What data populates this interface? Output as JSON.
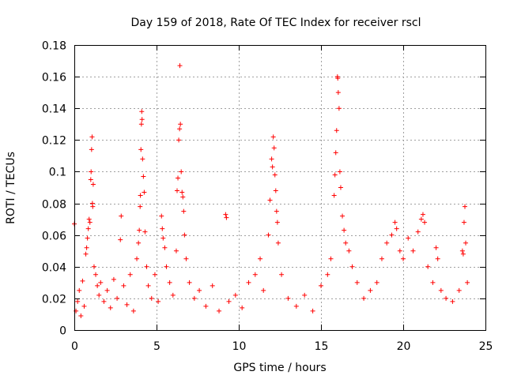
{
  "chart_data": {
    "type": "scatter",
    "title": "Day 159 of 2018, Rate Of TEC Index for receiver rscl",
    "xlabel": "GPS time / hours",
    "ylabel": "ROTI / TECUs",
    "xlim": [
      0,
      25
    ],
    "ylim": [
      0,
      0.18
    ],
    "xticks": [
      0,
      5,
      10,
      15,
      20,
      25
    ],
    "xtick_labels": [
      "0",
      "5",
      "10",
      "15",
      "20",
      "25"
    ],
    "yticks": [
      0,
      0.02,
      0.04,
      0.06,
      0.08,
      0.1,
      0.12,
      0.14,
      0.16,
      0.18
    ],
    "ytick_labels": [
      "0",
      "0.02",
      "0.04",
      "0.06",
      "0.08",
      "0.1",
      "0.12",
      "0.14",
      "0.16",
      "0.18"
    ],
    "grid": true,
    "marker": "+",
    "series": [
      {
        "name": "ROTI",
        "color": "#ff0000",
        "points": [
          [
            0.0,
            0.067
          ],
          [
            0.1,
            0.012
          ],
          [
            0.2,
            0.018
          ],
          [
            0.3,
            0.025
          ],
          [
            0.4,
            0.009
          ],
          [
            0.5,
            0.031
          ],
          [
            0.6,
            0.015
          ],
          [
            0.7,
            0.048
          ],
          [
            0.75,
            0.052
          ],
          [
            0.8,
            0.058
          ],
          [
            0.85,
            0.064
          ],
          [
            0.9,
            0.07
          ],
          [
            0.95,
            0.068
          ],
          [
            1.0,
            0.095
          ],
          [
            1.02,
            0.1
          ],
          [
            1.05,
            0.114
          ],
          [
            1.08,
            0.122
          ],
          [
            1.1,
            0.08
          ],
          [
            1.12,
            0.078
          ],
          [
            1.15,
            0.092
          ],
          [
            1.2,
            0.04
          ],
          [
            1.3,
            0.035
          ],
          [
            1.4,
            0.028
          ],
          [
            1.5,
            0.022
          ],
          [
            1.6,
            0.03
          ],
          [
            1.8,
            0.018
          ],
          [
            2.0,
            0.025
          ],
          [
            2.2,
            0.014
          ],
          [
            2.4,
            0.032
          ],
          [
            2.6,
            0.02
          ],
          [
            2.8,
            0.057
          ],
          [
            2.85,
            0.072
          ],
          [
            3.0,
            0.028
          ],
          [
            3.2,
            0.016
          ],
          [
            3.4,
            0.035
          ],
          [
            3.6,
            0.012
          ],
          [
            3.8,
            0.045
          ],
          [
            3.9,
            0.055
          ],
          [
            3.95,
            0.063
          ],
          [
            4.0,
            0.078
          ],
          [
            4.02,
            0.085
          ],
          [
            4.05,
            0.114
          ],
          [
            4.08,
            0.13
          ],
          [
            4.1,
            0.138
          ],
          [
            4.12,
            0.133
          ],
          [
            4.15,
            0.108
          ],
          [
            4.2,
            0.097
          ],
          [
            4.25,
            0.087
          ],
          [
            4.3,
            0.062
          ],
          [
            4.4,
            0.04
          ],
          [
            4.5,
            0.028
          ],
          [
            4.7,
            0.02
          ],
          [
            4.9,
            0.035
          ],
          [
            5.1,
            0.018
          ],
          [
            5.3,
            0.072
          ],
          [
            5.35,
            0.064
          ],
          [
            5.4,
            0.058
          ],
          [
            5.5,
            0.052
          ],
          [
            5.6,
            0.04
          ],
          [
            5.8,
            0.03
          ],
          [
            6.0,
            0.022
          ],
          [
            6.2,
            0.05
          ],
          [
            6.25,
            0.088
          ],
          [
            6.3,
            0.096
          ],
          [
            6.35,
            0.12
          ],
          [
            6.4,
            0.127
          ],
          [
            6.42,
            0.167
          ],
          [
            6.45,
            0.13
          ],
          [
            6.5,
            0.1
          ],
          [
            6.55,
            0.087
          ],
          [
            6.6,
            0.084
          ],
          [
            6.65,
            0.075
          ],
          [
            6.7,
            0.06
          ],
          [
            6.8,
            0.045
          ],
          [
            7.0,
            0.03
          ],
          [
            7.3,
            0.02
          ],
          [
            7.6,
            0.025
          ],
          [
            8.0,
            0.015
          ],
          [
            8.4,
            0.028
          ],
          [
            8.8,
            0.012
          ],
          [
            9.2,
            0.073
          ],
          [
            9.25,
            0.071
          ],
          [
            9.4,
            0.018
          ],
          [
            9.8,
            0.022
          ],
          [
            10.2,
            0.014
          ],
          [
            10.6,
            0.03
          ],
          [
            11.0,
            0.035
          ],
          [
            11.3,
            0.045
          ],
          [
            11.5,
            0.025
          ],
          [
            11.8,
            0.06
          ],
          [
            11.9,
            0.082
          ],
          [
            12.0,
            0.108
          ],
          [
            12.05,
            0.103
          ],
          [
            12.1,
            0.122
          ],
          [
            12.15,
            0.115
          ],
          [
            12.2,
            0.098
          ],
          [
            12.25,
            0.088
          ],
          [
            12.3,
            0.075
          ],
          [
            12.35,
            0.068
          ],
          [
            12.4,
            0.055
          ],
          [
            12.6,
            0.035
          ],
          [
            13.0,
            0.02
          ],
          [
            13.5,
            0.015
          ],
          [
            14.0,
            0.022
          ],
          [
            14.5,
            0.012
          ],
          [
            15.0,
            0.028
          ],
          [
            15.4,
            0.035
          ],
          [
            15.6,
            0.045
          ],
          [
            15.8,
            0.085
          ],
          [
            15.85,
            0.098
          ],
          [
            15.9,
            0.112
          ],
          [
            15.95,
            0.126
          ],
          [
            16.0,
            0.16
          ],
          [
            16.02,
            0.159
          ],
          [
            16.05,
            0.15
          ],
          [
            16.1,
            0.14
          ],
          [
            16.15,
            0.1
          ],
          [
            16.2,
            0.09
          ],
          [
            16.3,
            0.072
          ],
          [
            16.4,
            0.063
          ],
          [
            16.5,
            0.055
          ],
          [
            16.7,
            0.05
          ],
          [
            16.9,
            0.04
          ],
          [
            17.2,
            0.03
          ],
          [
            17.6,
            0.02
          ],
          [
            18.0,
            0.025
          ],
          [
            18.4,
            0.03
          ],
          [
            18.7,
            0.045
          ],
          [
            19.0,
            0.055
          ],
          [
            19.3,
            0.06
          ],
          [
            19.5,
            0.068
          ],
          [
            19.6,
            0.064
          ],
          [
            19.8,
            0.05
          ],
          [
            20.0,
            0.045
          ],
          [
            20.3,
            0.058
          ],
          [
            20.6,
            0.05
          ],
          [
            20.9,
            0.062
          ],
          [
            21.1,
            0.07
          ],
          [
            21.2,
            0.073
          ],
          [
            21.3,
            0.068
          ],
          [
            21.5,
            0.04
          ],
          [
            21.8,
            0.03
          ],
          [
            22.0,
            0.052
          ],
          [
            22.1,
            0.045
          ],
          [
            22.3,
            0.025
          ],
          [
            22.6,
            0.02
          ],
          [
            23.0,
            0.018
          ],
          [
            23.4,
            0.025
          ],
          [
            23.6,
            0.05
          ],
          [
            23.65,
            0.048
          ],
          [
            23.7,
            0.068
          ],
          [
            23.75,
            0.078
          ],
          [
            23.8,
            0.055
          ],
          [
            23.9,
            0.03
          ]
        ]
      }
    ]
  }
}
